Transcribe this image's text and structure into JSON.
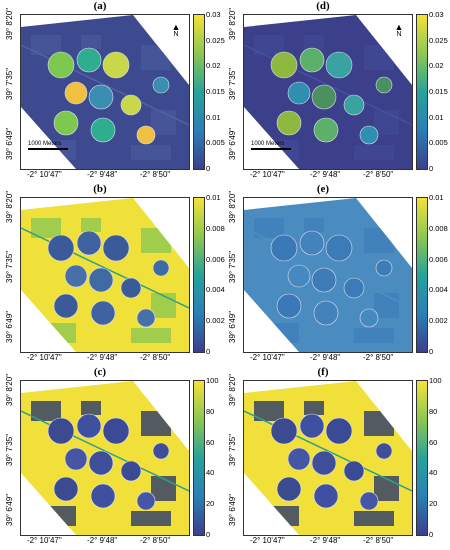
{
  "panels": [
    {
      "id": "a",
      "label": "(a)",
      "colorbar": [
        "0.03",
        "0.025",
        "0.02",
        "0.015",
        "0.01",
        "0.005",
        "0"
      ],
      "north": true,
      "scale": "1000 Meters",
      "scheme": "a"
    },
    {
      "id": "d",
      "label": "(d)",
      "colorbar": [
        "0.03",
        "0.025",
        "0.02",
        "0.015",
        "0.01",
        "0.005",
        "0"
      ],
      "north": true,
      "scale": "1000 Meters",
      "scheme": "d"
    },
    {
      "id": "b",
      "label": "(b)",
      "colorbar": [
        "0.01",
        "0.008",
        "0.006",
        "0.004",
        "0.002",
        "0"
      ],
      "north": false,
      "scale": "",
      "scheme": "b"
    },
    {
      "id": "e",
      "label": "(e)",
      "colorbar": [
        "0.01",
        "0.008",
        "0.006",
        "0.004",
        "0.002",
        "0"
      ],
      "north": false,
      "scale": "",
      "scheme": "e"
    },
    {
      "id": "c",
      "label": "(c)",
      "colorbar": [
        "100",
        "80",
        "60",
        "40",
        "20",
        "0"
      ],
      "north": false,
      "scale": "",
      "scheme": "c"
    },
    {
      "id": "f",
      "label": "(f)",
      "colorbar": [
        "100",
        "80",
        "60",
        "40",
        "20",
        "0"
      ],
      "north": false,
      "scale": "",
      "scheme": "f"
    }
  ],
  "y_labels": [
    "39° 8'20\"",
    "39° 7'35\"",
    "39° 6'49\""
  ],
  "x_labels": [
    "-2° 10'47\"",
    "-2° 9'48\"",
    "-2° 8'50\""
  ],
  "north_label": "N",
  "colors": {
    "low": "#3b3f8c",
    "mid": "#26a39a",
    "high": "#f4e23a"
  }
}
